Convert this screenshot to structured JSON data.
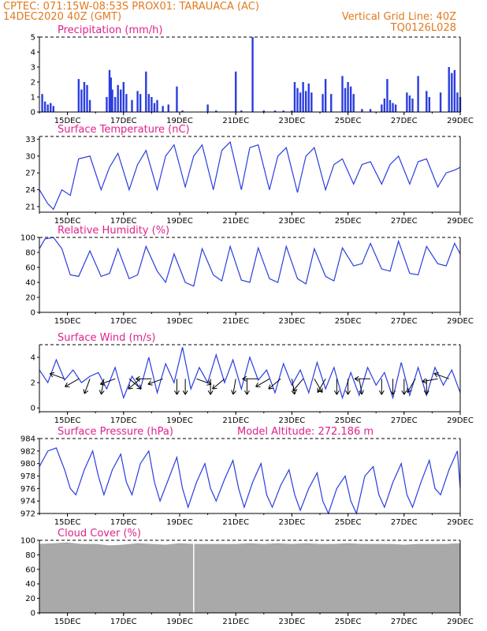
{
  "header": {
    "line1_left": "CPTEC:   071:15W-08:53S   PROX01: TARAUACA (AC)",
    "line2_left": "14DEC2020 40Z (GMT)",
    "line2_right": "Vertical Grid Line: 40Z",
    "line3_right": "TQ0126L028"
  },
  "colors": {
    "header": "#e07a1f",
    "title": "#e0218a",
    "series": "#2a3de0",
    "cloud": "#a9a9a9",
    "arrow": "#000000"
  },
  "x_axis": {
    "ticks": [
      "15DEC",
      "17DEC",
      "19DEC",
      "21DEC",
      "23DEC",
      "25DEC",
      "27DEC",
      "29DEC"
    ],
    "range_days": [
      14,
      29
    ]
  },
  "chart_data": [
    {
      "id": "precip",
      "type": "bar",
      "title": "Precipitation (mm/h)",
      "ylim": [
        0,
        5
      ],
      "yticks": [
        0,
        1,
        2,
        3,
        4,
        5
      ],
      "bars": [
        [
          14.1,
          1.2
        ],
        [
          14.2,
          0.7
        ],
        [
          14.3,
          0.5
        ],
        [
          14.4,
          0.6
        ],
        [
          14.5,
          0.4
        ],
        [
          15.4,
          2.2
        ],
        [
          15.5,
          1.5
        ],
        [
          15.6,
          2.0
        ],
        [
          15.7,
          1.8
        ],
        [
          15.8,
          0.8
        ],
        [
          16.4,
          1.0
        ],
        [
          16.5,
          2.8
        ],
        [
          16.55,
          2.3
        ],
        [
          16.6,
          1.5
        ],
        [
          16.7,
          1.0
        ],
        [
          16.8,
          1.8
        ],
        [
          16.9,
          1.5
        ],
        [
          17.0,
          2.0
        ],
        [
          17.1,
          1.2
        ],
        [
          17.3,
          0.8
        ],
        [
          17.5,
          1.4
        ],
        [
          17.6,
          1.2
        ],
        [
          17.8,
          2.7
        ],
        [
          17.9,
          1.2
        ],
        [
          18.0,
          1.0
        ],
        [
          18.1,
          0.6
        ],
        [
          18.2,
          0.8
        ],
        [
          18.4,
          0.4
        ],
        [
          18.6,
          0.5
        ],
        [
          18.9,
          1.7
        ],
        [
          19.1,
          0.1
        ],
        [
          20.0,
          0.5
        ],
        [
          20.3,
          0.1
        ],
        [
          21.0,
          2.7
        ],
        [
          21.2,
          0.1
        ],
        [
          21.6,
          5.0
        ],
        [
          22.0,
          0.1
        ],
        [
          22.4,
          0.1
        ],
        [
          22.7,
          0.1
        ],
        [
          23.0,
          0.1
        ],
        [
          23.1,
          2.0
        ],
        [
          23.2,
          1.6
        ],
        [
          23.3,
          1.3
        ],
        [
          23.4,
          2.0
        ],
        [
          23.5,
          1.4
        ],
        [
          23.6,
          1.9
        ],
        [
          23.7,
          1.3
        ],
        [
          24.1,
          1.2
        ],
        [
          24.2,
          2.2
        ],
        [
          24.4,
          1.2
        ],
        [
          24.8,
          2.4
        ],
        [
          24.9,
          1.6
        ],
        [
          25.0,
          2.0
        ],
        [
          25.1,
          1.7
        ],
        [
          25.2,
          1.2
        ],
        [
          25.5,
          0.2
        ],
        [
          25.8,
          0.2
        ],
        [
          26.2,
          0.5
        ],
        [
          26.3,
          0.9
        ],
        [
          26.4,
          2.2
        ],
        [
          26.5,
          0.8
        ],
        [
          26.6,
          0.6
        ],
        [
          26.7,
          0.5
        ],
        [
          27.1,
          1.3
        ],
        [
          27.2,
          1.1
        ],
        [
          27.3,
          0.9
        ],
        [
          27.5,
          2.4
        ],
        [
          27.8,
          1.4
        ],
        [
          27.9,
          1.0
        ],
        [
          28.3,
          1.3
        ],
        [
          28.6,
          3.0
        ],
        [
          28.7,
          2.6
        ],
        [
          28.8,
          2.8
        ],
        [
          28.9,
          1.3
        ],
        [
          29.0,
          1.0
        ]
      ]
    },
    {
      "id": "temp",
      "type": "line",
      "title": "Surface Temperature (nC)",
      "ylim": [
        20,
        33.5
      ],
      "yticks": [
        21,
        24,
        27,
        30,
        33
      ],
      "x": [
        14.0,
        14.3,
        14.5,
        14.8,
        15.1,
        15.4,
        15.8,
        16.2,
        16.5,
        16.8,
        17.2,
        17.5,
        17.8,
        18.2,
        18.5,
        18.8,
        19.2,
        19.5,
        19.8,
        20.2,
        20.5,
        20.8,
        21.2,
        21.5,
        21.8,
        22.2,
        22.5,
        22.8,
        23.2,
        23.5,
        23.8,
        24.2,
        24.5,
        24.8,
        25.2,
        25.5,
        25.8,
        26.2,
        26.5,
        26.8,
        27.2,
        27.5,
        27.8,
        28.2,
        28.5,
        28.8,
        29.0
      ],
      "y": [
        24,
        21.5,
        20.5,
        24,
        23,
        29.5,
        30,
        24,
        28,
        30.5,
        24,
        28.5,
        31,
        24,
        30,
        32,
        24.5,
        30,
        32,
        24,
        31,
        32.5,
        24,
        31.5,
        32,
        24,
        30,
        31.5,
        23.5,
        30,
        31.5,
        24,
        28.5,
        29.5,
        25,
        28.5,
        29,
        25,
        28.5,
        30,
        25,
        29,
        29.5,
        24.5,
        27,
        27.5,
        28
      ]
    },
    {
      "id": "rh",
      "type": "line",
      "title": "Relative Humidity (%)",
      "ylim": [
        0,
        100
      ],
      "yticks": [
        0,
        20,
        40,
        60,
        80,
        100
      ],
      "x": [
        14.0,
        14.2,
        14.5,
        14.8,
        15.1,
        15.4,
        15.8,
        16.2,
        16.5,
        16.8,
        17.2,
        17.5,
        17.8,
        18.2,
        18.5,
        18.8,
        19.2,
        19.5,
        19.8,
        20.2,
        20.5,
        20.8,
        21.2,
        21.5,
        21.8,
        22.2,
        22.5,
        22.8,
        23.2,
        23.5,
        23.8,
        24.2,
        24.5,
        24.8,
        25.2,
        25.5,
        25.8,
        26.2,
        26.5,
        26.8,
        27.2,
        27.5,
        27.8,
        28.2,
        28.5,
        28.8,
        29.0
      ],
      "y": [
        85,
        98,
        100,
        85,
        50,
        48,
        82,
        48,
        52,
        85,
        45,
        50,
        88,
        55,
        40,
        78,
        40,
        35,
        85,
        50,
        42,
        88,
        43,
        40,
        86,
        45,
        40,
        88,
        45,
        38,
        85,
        48,
        42,
        86,
        62,
        65,
        92,
        58,
        55,
        95,
        52,
        50,
        88,
        65,
        62,
        92,
        78
      ]
    },
    {
      "id": "wind",
      "type": "line",
      "title": "Surface Wind (m/s)",
      "ylim": [
        -0.3,
        5
      ],
      "yticks": [
        0,
        2,
        4
      ],
      "x": [
        14.0,
        14.3,
        14.6,
        14.9,
        15.2,
        15.5,
        15.8,
        16.1,
        16.4,
        16.7,
        17.0,
        17.3,
        17.6,
        17.9,
        18.2,
        18.5,
        18.8,
        19.1,
        19.4,
        19.7,
        20.0,
        20.3,
        20.6,
        20.9,
        21.2,
        21.5,
        21.8,
        22.1,
        22.4,
        22.7,
        23.0,
        23.3,
        23.6,
        23.9,
        24.2,
        24.5,
        24.8,
        25.1,
        25.4,
        25.7,
        26.0,
        26.3,
        26.6,
        26.9,
        27.2,
        27.5,
        27.8,
        28.1,
        28.4,
        28.7,
        29.0
      ],
      "y": [
        3.0,
        2.0,
        3.8,
        2.2,
        3.0,
        2.0,
        2.5,
        2.8,
        1.5,
        3.2,
        0.8,
        2.5,
        1.5,
        4.0,
        1.2,
        3.5,
        2.0,
        4.8,
        1.5,
        3.2,
        2.0,
        4.2,
        2.0,
        3.8,
        1.5,
        4.0,
        2.2,
        3.0,
        1.2,
        3.5,
        1.8,
        3.0,
        1.2,
        3.6,
        1.5,
        3.2,
        0.8,
        2.8,
        1.0,
        3.2,
        1.8,
        2.8,
        0.8,
        3.6,
        1.0,
        3.2,
        1.0,
        3.2,
        1.8,
        3.0,
        1.2
      ],
      "arrows": [
        [
          14.9,
          -200
        ],
        [
          15.4,
          -150
        ],
        [
          15.8,
          -110
        ],
        [
          16.3,
          -100
        ],
        [
          16.7,
          200
        ],
        [
          17.2,
          -40
        ],
        [
          17.6,
          -140
        ],
        [
          18.0,
          180
        ],
        [
          18.4,
          200
        ],
        [
          18.9,
          -90
        ],
        [
          19.2,
          -90
        ],
        [
          19.6,
          -20
        ],
        [
          20.1,
          -90
        ],
        [
          20.6,
          -140
        ],
        [
          21.0,
          -100
        ],
        [
          21.4,
          -90
        ],
        [
          21.8,
          -180
        ],
        [
          22.2,
          -150
        ],
        [
          22.6,
          -140
        ],
        [
          23.0,
          -80
        ],
        [
          23.4,
          -130
        ],
        [
          23.8,
          -60
        ],
        [
          24.2,
          -120
        ],
        [
          24.6,
          -90
        ],
        [
          25.0,
          -90
        ],
        [
          25.4,
          -80
        ],
        [
          25.8,
          180
        ],
        [
          26.2,
          -90
        ],
        [
          26.6,
          -90
        ],
        [
          27.0,
          -90
        ],
        [
          27.4,
          -120
        ],
        [
          27.8,
          -90
        ],
        [
          28.2,
          190
        ],
        [
          28.6,
          -200
        ]
      ]
    },
    {
      "id": "pres",
      "type": "line",
      "title": "Surface Pressure (hPa)",
      "annotation": "Model Altitude: 272.186 m",
      "ylim": [
        972,
        984
      ],
      "yticks": [
        972,
        974,
        976,
        978,
        980,
        982,
        984
      ],
      "x": [
        14.0,
        14.3,
        14.6,
        14.9,
        15.1,
        15.3,
        15.6,
        15.9,
        16.1,
        16.3,
        16.6,
        16.9,
        17.1,
        17.3,
        17.6,
        17.9,
        18.1,
        18.3,
        18.6,
        18.9,
        19.1,
        19.3,
        19.6,
        19.9,
        20.1,
        20.3,
        20.6,
        20.9,
        21.1,
        21.3,
        21.6,
        21.9,
        22.1,
        22.3,
        22.6,
        22.9,
        23.1,
        23.3,
        23.6,
        23.9,
        24.1,
        24.3,
        24.6,
        24.9,
        25.1,
        25.3,
        25.6,
        25.9,
        26.1,
        26.3,
        26.6,
        26.9,
        27.1,
        27.3,
        27.6,
        27.9,
        28.1,
        28.3,
        28.6,
        28.9,
        29.0
      ],
      "y": [
        979.5,
        982,
        982.5,
        979,
        976,
        975,
        979,
        982,
        978,
        975,
        979,
        981.5,
        977,
        975,
        980,
        982,
        977,
        974,
        977.5,
        981,
        976,
        973,
        977,
        980,
        976,
        974,
        977.5,
        980.5,
        976,
        973,
        977,
        980,
        975,
        973,
        976.5,
        979,
        975,
        972.5,
        976,
        978.5,
        974,
        972,
        976,
        978,
        974,
        972,
        978,
        979.5,
        975,
        973,
        977,
        980,
        975,
        973,
        977,
        980.5,
        976,
        975,
        979,
        982,
        976
      ]
    },
    {
      "id": "cloud",
      "type": "area",
      "title": "Cloud Cover (%)",
      "ylim": [
        0,
        100
      ],
      "yticks": [
        0,
        20,
        40,
        60,
        80,
        100
      ],
      "x": [
        14.0,
        14.5,
        15.0,
        15.5,
        16.0,
        16.5,
        17.0,
        17.5,
        18.0,
        18.5,
        19.0,
        19.5,
        20.0,
        20.5,
        21.0,
        21.5,
        22.0,
        22.5,
        23.0,
        23.5,
        24.0,
        24.5,
        25.0,
        25.5,
        26.0,
        26.5,
        27.0,
        27.5,
        28.0,
        28.5,
        29.0
      ],
      "y": [
        95,
        96,
        97,
        95,
        95,
        93,
        94,
        96,
        95,
        94,
        96,
        95,
        95,
        95,
        95,
        96,
        95,
        96,
        95,
        96,
        95,
        95,
        96,
        95,
        95,
        95,
        94,
        95,
        95,
        95,
        96
      ]
    }
  ]
}
